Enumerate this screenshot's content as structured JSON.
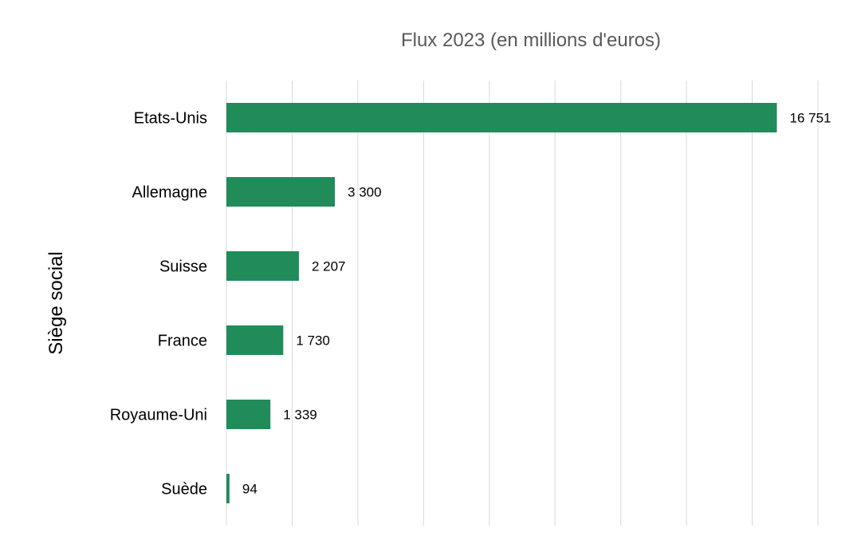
{
  "chart_data": {
    "type": "bar",
    "orientation": "horizontal",
    "title": "Flux 2023 (en millions d'euros)",
    "xlabel": "",
    "ylabel": "Siège social",
    "categories": [
      "Etats-Unis",
      "Allemagne",
      "Suisse",
      "France",
      "Royaume-Uni",
      "Suède"
    ],
    "values": [
      16751,
      3300,
      2207,
      1730,
      1339,
      94
    ],
    "value_labels": [
      "16 751",
      "3 300",
      "2 207",
      "1 730",
      "1 339",
      "94"
    ],
    "xlim": [
      0,
      18000
    ],
    "grid": true,
    "legend": "none",
    "bar_color": "#218b5a"
  }
}
